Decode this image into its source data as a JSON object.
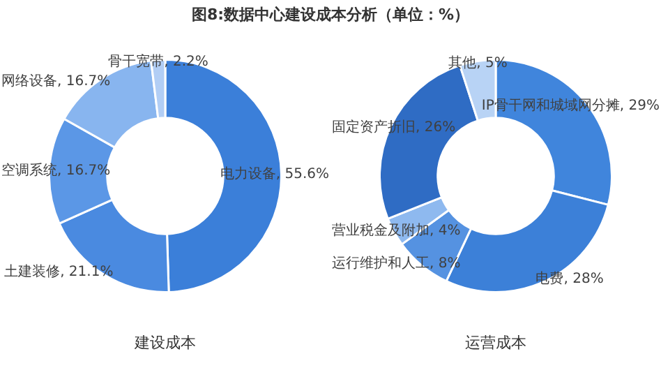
{
  "chart_data": [
    {
      "type": "donut",
      "title": "图8:数据中心建设成本分析（单位：%）",
      "xlabel": "建设成本",
      "legend": false,
      "categories": [
        "电力设备",
        "土建装修",
        "空调系统",
        "网络设备",
        "骨干宽带"
      ],
      "values": [
        55.6,
        21.1,
        16.7,
        16.7,
        2.2
      ],
      "value_labels": [
        "55.6%",
        "21.1%",
        "16.7%",
        "16.7%",
        "2.2%"
      ],
      "colors": [
        "#3b7fd9",
        "#4a8ae0",
        "#5b97e6",
        "#88b5ef",
        "#b2cef5"
      ]
    },
    {
      "type": "donut",
      "xlabel": "运营成本",
      "legend": false,
      "categories": [
        "IP骨干网和城域网分摊",
        "电费",
        "运行维护和人工",
        "营业税金及附加",
        "固定资产折旧",
        "其他"
      ],
      "values": [
        29,
        28,
        8,
        4,
        26,
        5
      ],
      "value_labels": [
        "29%",
        "28%",
        "8%",
        "4%",
        "26%",
        "5%"
      ],
      "colors": [
        "#4085dc",
        "#3c80d8",
        "#5592e1",
        "#8eb9ef",
        "#2f6cc4",
        "#b8d3f5"
      ]
    }
  ]
}
